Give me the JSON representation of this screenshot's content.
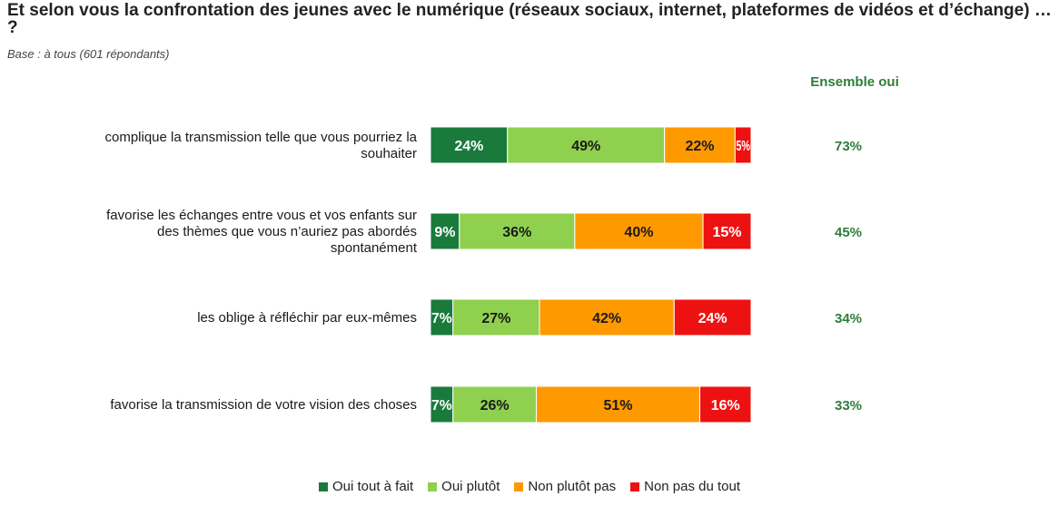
{
  "header": {
    "title": "Et selon vous la confrontation des jeunes avec le numérique (réseaux sociaux, internet, plateformes de vidéos et d’échange) … ?",
    "subtitle": "Base : à tous (601 répondants)",
    "ensemble_label": "Ensemble oui"
  },
  "colors": {
    "oui_tout_a_fait": "#1a7a3c",
    "oui_plutot": "#8fd14f",
    "non_plutot_pas": "#ff9900",
    "non_pas_du_tout": "#ee1111",
    "ensemble_text": "#2e7d3a"
  },
  "legend": [
    {
      "name": "Oui tout à fait",
      "color": "#1a7a3c"
    },
    {
      "name": "Oui plutôt",
      "color": "#8fd14f"
    },
    {
      "name": "Non plutôt pas",
      "color": "#ff9900"
    },
    {
      "name": "Non pas du tout",
      "color": "#ee1111"
    }
  ],
  "chart_data": {
    "type": "bar",
    "orientation": "horizontal",
    "stacked": true,
    "unit": "%",
    "categories": [
      [
        "complique la transmission telle que vous pourriez la",
        "souhaiter"
      ],
      [
        "favorise les échanges entre vous et vos enfants sur",
        "des thèmes que vous n’auriez pas abordés",
        "spontanément"
      ],
      [
        "les oblige à réfléchir par eux-mêmes"
      ],
      [
        "favorise la transmission de votre vision des choses"
      ]
    ],
    "series": [
      {
        "name": "Oui tout à fait",
        "values": [
          24,
          9,
          7,
          7
        ]
      },
      {
        "name": "Oui plutôt",
        "values": [
          49,
          36,
          27,
          26
        ]
      },
      {
        "name": "Non plutôt pas",
        "values": [
          22,
          40,
          42,
          51
        ]
      },
      {
        "name": "Non pas du tout",
        "values": [
          5,
          15,
          24,
          16
        ]
      }
    ],
    "ensemble_oui": [
      73,
      45,
      34,
      33
    ],
    "legend_position": "bottom",
    "grid": false
  }
}
